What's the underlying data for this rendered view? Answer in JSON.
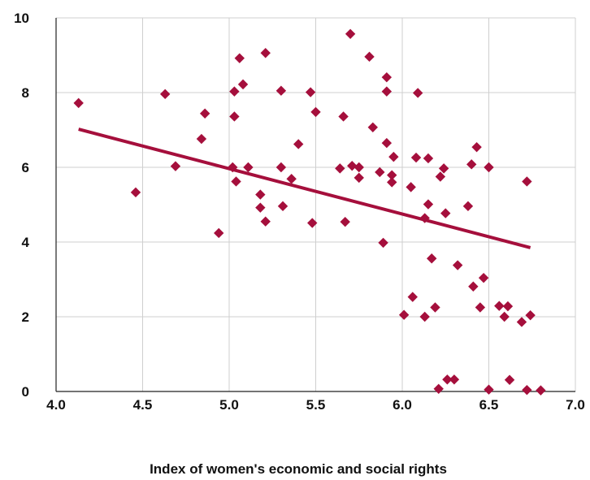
{
  "chart_data": {
    "type": "scatter",
    "title": "",
    "xlabel": "Index of women's economic and social rights",
    "ylabel": "",
    "xlim": [
      4.0,
      7.0
    ],
    "ylim": [
      0,
      10
    ],
    "x_ticks": [
      "4.0",
      "4.5",
      "5.0",
      "5.5",
      "6.0",
      "6.5",
      "7.0"
    ],
    "y_ticks": [
      "0",
      "2",
      "4",
      "6",
      "8",
      "10"
    ],
    "grid": true,
    "legend": "none",
    "marker_color": "#A50F3C",
    "trendline": {
      "x": [
        4.13,
        6.74
      ],
      "y": [
        7.02,
        3.85
      ]
    },
    "series": [
      {
        "points": [
          [
            4.13,
            7.72
          ],
          [
            4.46,
            5.33
          ],
          [
            4.63,
            7.96
          ],
          [
            4.69,
            6.03
          ],
          [
            4.84,
            6.76
          ],
          [
            4.86,
            7.44
          ],
          [
            4.94,
            4.24
          ],
          [
            5.02,
            6.0
          ],
          [
            5.03,
            8.03
          ],
          [
            5.03,
            7.36
          ],
          [
            5.04,
            5.62
          ],
          [
            5.06,
            8.92
          ],
          [
            5.08,
            8.22
          ],
          [
            5.11,
            6.0
          ],
          [
            5.18,
            5.27
          ],
          [
            5.18,
            4.92
          ],
          [
            5.21,
            9.06
          ],
          [
            5.21,
            4.55
          ],
          [
            5.3,
            8.05
          ],
          [
            5.3,
            6.0
          ],
          [
            5.31,
            4.96
          ],
          [
            5.36,
            5.69
          ],
          [
            5.4,
            6.62
          ],
          [
            5.47,
            8.01
          ],
          [
            5.48,
            4.51
          ],
          [
            5.5,
            7.48
          ],
          [
            5.66,
            7.36
          ],
          [
            5.64,
            5.97
          ],
          [
            5.67,
            4.54
          ],
          [
            5.7,
            9.57
          ],
          [
            5.71,
            6.04
          ],
          [
            5.75,
            6.0
          ],
          [
            5.75,
            5.72
          ],
          [
            5.81,
            8.96
          ],
          [
            5.83,
            7.07
          ],
          [
            5.87,
            5.87
          ],
          [
            5.89,
            3.98
          ],
          [
            5.91,
            8.41
          ],
          [
            5.91,
            8.03
          ],
          [
            5.91,
            6.65
          ],
          [
            5.94,
            5.79
          ],
          [
            5.94,
            5.6
          ],
          [
            5.95,
            6.28
          ],
          [
            6.01,
            2.05
          ],
          [
            6.05,
            5.47
          ],
          [
            6.06,
            2.53
          ],
          [
            6.08,
            6.26
          ],
          [
            6.09,
            7.99
          ],
          [
            6.13,
            2.0
          ],
          [
            6.13,
            4.64
          ],
          [
            6.15,
            5.01
          ],
          [
            6.15,
            6.24
          ],
          [
            6.17,
            3.56
          ],
          [
            6.19,
            2.25
          ],
          [
            6.21,
            0.07
          ],
          [
            6.22,
            5.75
          ],
          [
            6.24,
            5.97
          ],
          [
            6.25,
            4.77
          ],
          [
            6.26,
            0.32
          ],
          [
            6.3,
            0.32
          ],
          [
            6.32,
            3.38
          ],
          [
            6.38,
            4.96
          ],
          [
            6.4,
            6.08
          ],
          [
            6.41,
            2.81
          ],
          [
            6.43,
            6.54
          ],
          [
            6.45,
            2.25
          ],
          [
            6.47,
            3.04
          ],
          [
            6.5,
            6.0
          ],
          [
            6.5,
            0.05
          ],
          [
            6.56,
            2.29
          ],
          [
            6.59,
            2.0
          ],
          [
            6.61,
            2.28
          ],
          [
            6.62,
            0.31
          ],
          [
            6.69,
            1.86
          ],
          [
            6.72,
            5.62
          ],
          [
            6.72,
            0.04
          ],
          [
            6.74,
            2.04
          ],
          [
            6.8,
            0.03
          ]
        ]
      }
    ]
  }
}
